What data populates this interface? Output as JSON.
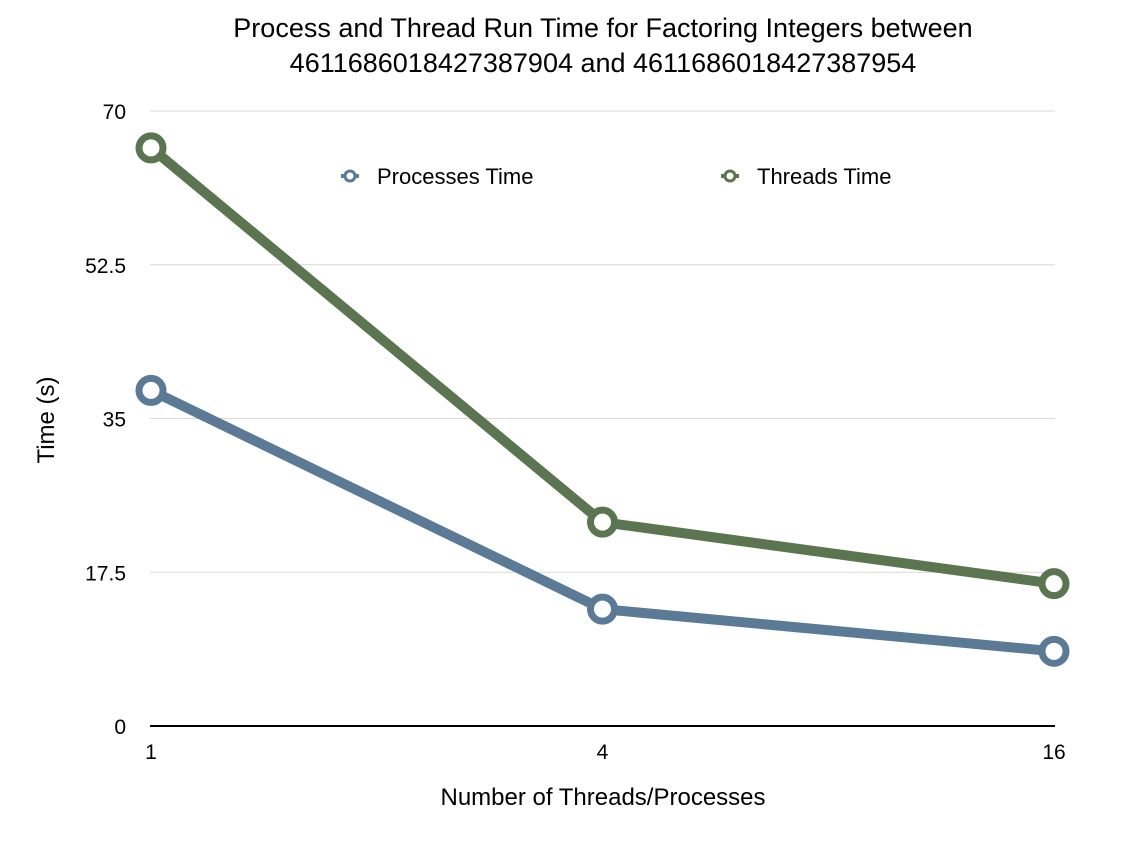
{
  "chart_data": {
    "type": "line",
    "title": "Process and Thread Run Time for Factoring Integers between 4611686018427387904 and 4611686018427387954",
    "title_lines": [
      "Process and Thread Run Time for Factoring Integers between",
      "4611686018427387904 and 4611686018427387954"
    ],
    "xlabel": "Number of Threads/Processes",
    "ylabel": "Time  (s)",
    "categories": [
      "1",
      "4",
      "16"
    ],
    "ylim": [
      0,
      70
    ],
    "yticks": [
      "0",
      "17.5",
      "35",
      "52.5",
      "70"
    ],
    "grid": true,
    "legend_position": "top-center",
    "series": [
      {
        "name": "Processes Time",
        "values": [
          38.2,
          13.3,
          8.5
        ],
        "color": "#5a7a96"
      },
      {
        "name": "Threads Time",
        "values": [
          65.8,
          23.2,
          16.2
        ],
        "color": "#5a7550"
      }
    ]
  }
}
